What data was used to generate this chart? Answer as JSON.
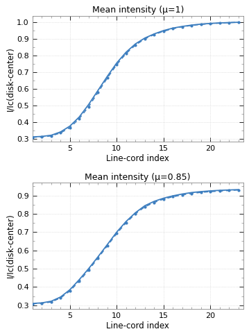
{
  "title1": "Mean intensity (μ=1)",
  "title2": "Mean intensity (μ=0.85)",
  "xlabel": "Line-cord index",
  "ylabel": "I/Ic(disk-center)",
  "x": [
    1,
    2,
    3,
    4,
    5,
    6,
    7,
    8,
    9,
    10,
    11,
    12,
    13,
    14,
    15,
    16,
    17,
    18,
    19,
    20,
    21,
    22,
    23
  ],
  "y1_solid": [
    0.31,
    0.313,
    0.32,
    0.34,
    0.375,
    0.43,
    0.505,
    0.59,
    0.675,
    0.755,
    0.82,
    0.87,
    0.905,
    0.93,
    0.95,
    0.965,
    0.975,
    0.983,
    0.989,
    0.993,
    0.996,
    0.998,
    1.0
  ],
  "y1_dashed": [
    0.308,
    0.31,
    0.316,
    0.334,
    0.366,
    0.42,
    0.492,
    0.578,
    0.665,
    0.745,
    0.812,
    0.863,
    0.9,
    0.926,
    0.946,
    0.961,
    0.973,
    0.981,
    0.987,
    0.992,
    0.995,
    0.998,
    1.0
  ],
  "y2_solid": [
    0.31,
    0.313,
    0.322,
    0.345,
    0.385,
    0.44,
    0.5,
    0.565,
    0.632,
    0.7,
    0.758,
    0.806,
    0.844,
    0.868,
    0.885,
    0.898,
    0.908,
    0.916,
    0.921,
    0.925,
    0.928,
    0.93,
    0.932
  ],
  "y2_dashed": [
    0.308,
    0.311,
    0.318,
    0.34,
    0.378,
    0.432,
    0.492,
    0.558,
    0.625,
    0.692,
    0.751,
    0.8,
    0.838,
    0.862,
    0.88,
    0.893,
    0.903,
    0.911,
    0.917,
    0.921,
    0.924,
    0.927,
    0.93
  ],
  "ylim1": [
    0.28,
    1.04
  ],
  "ylim2": [
    0.28,
    0.97
  ],
  "xlim": [
    1,
    23.5
  ],
  "yticks1": [
    0.3,
    0.4,
    0.5,
    0.6,
    0.7,
    0.8,
    0.9,
    1.0
  ],
  "yticks2": [
    0.3,
    0.4,
    0.5,
    0.6,
    0.7,
    0.8,
    0.9
  ],
  "xticks": [
    5,
    10,
    15,
    20
  ],
  "line_color": "#3d7ebf",
  "bg_color": "#ffffff",
  "marker": ".",
  "marker_size": 4
}
